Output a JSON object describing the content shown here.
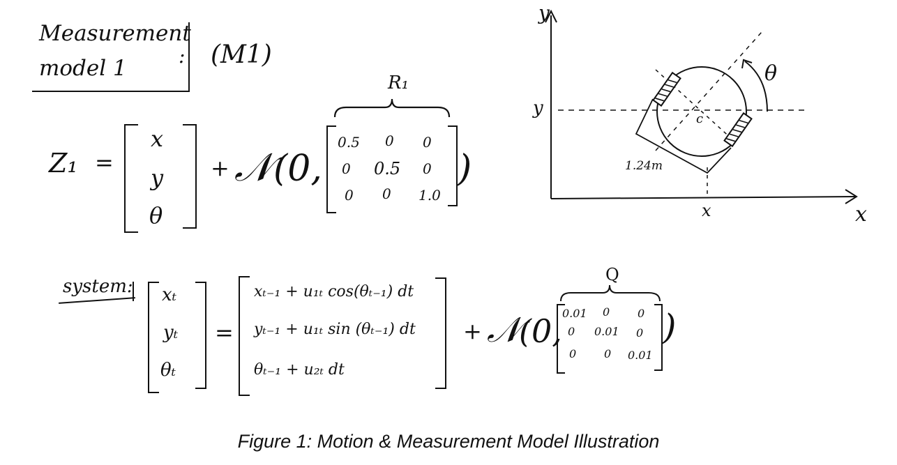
{
  "title": {
    "line1": "Measurement",
    "line2": "model 1",
    "colon": ":",
    "tag": "(M1)"
  },
  "measurement": {
    "lhs": "Z₁",
    "equals": "=",
    "vector": [
      "x",
      "y",
      "θ"
    ],
    "plus": "+",
    "noise_fn": "𝒩",
    "noise_open": "(0,",
    "noise_close": ")",
    "cov_label": "R₁",
    "cov": [
      [
        "0.5",
        "0",
        "0"
      ],
      [
        "0",
        "0.5",
        "0"
      ],
      [
        "0",
        "0",
        "1.0"
      ]
    ]
  },
  "diagram": {
    "y_axis": "y",
    "x_axis": "x",
    "y_tick": "y",
    "x_tick": "x",
    "angle": "θ",
    "center": "c",
    "dimension": "1.24m"
  },
  "system": {
    "label": "system:",
    "lhs_vector": [
      "xₜ",
      "yₜ",
      "θₜ"
    ],
    "equals": "=",
    "rhs_rows": [
      "xₜ₋₁ + u₁ₜ cos(θₜ₋₁) dt",
      "yₜ₋₁ + u₁ₜ sin (θₜ₋₁) dt",
      "θₜ₋₁ + u₂ₜ dt"
    ],
    "plus": "+",
    "noise_fn": "𝒩",
    "noise_open": "(0,",
    "noise_close": ")",
    "cov_label": "Q",
    "cov": [
      [
        "0.01",
        "0",
        "0"
      ],
      [
        "0",
        "0.01",
        "0"
      ],
      [
        "0",
        "0",
        "0.01"
      ]
    ]
  },
  "caption": "Figure 1: Motion & Measurement Model Illustration"
}
